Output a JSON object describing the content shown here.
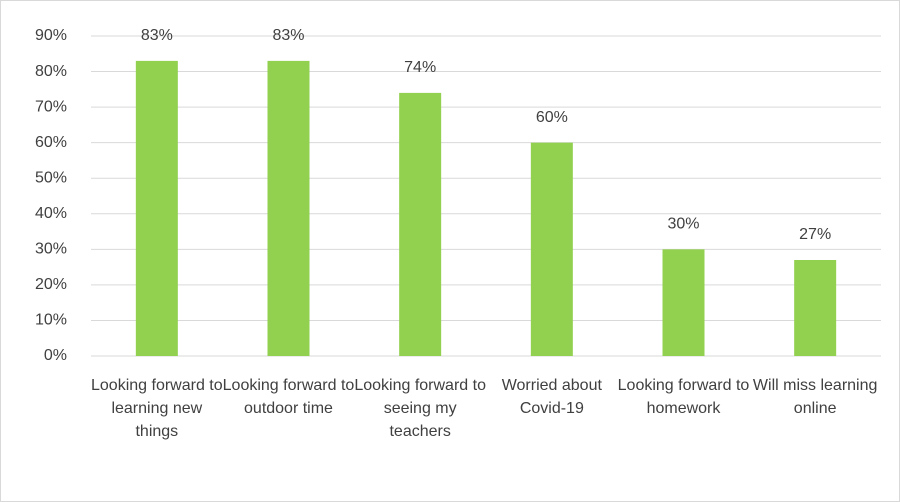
{
  "chart_data": {
    "type": "bar",
    "categories": [
      "Looking forward to learning new things",
      "Looking forward to outdoor time",
      "Looking forward to seeing my teachers",
      "Worried about Covid-19",
      "Looking forward to homework",
      "Will miss learning online"
    ],
    "values": [
      83,
      83,
      74,
      60,
      30,
      27
    ],
    "value_labels": [
      "83%",
      "83%",
      "74%",
      "60%",
      "30%",
      "27%"
    ],
    "color": "#92d050",
    "ylim": [
      0,
      90
    ],
    "yticks": [
      {
        "value": 0,
        "label": "0%"
      },
      {
        "value": 10,
        "label": "10%"
      },
      {
        "value": 20,
        "label": "20%"
      },
      {
        "value": 30,
        "label": "30%"
      },
      {
        "value": 40,
        "label": "40%"
      },
      {
        "value": 50,
        "label": "50%"
      },
      {
        "value": 60,
        "label": "60%"
      },
      {
        "value": 70,
        "label": "70%"
      },
      {
        "value": 80,
        "label": "80%"
      },
      {
        "value": 90,
        "label": "90%"
      }
    ],
    "grid": true
  }
}
